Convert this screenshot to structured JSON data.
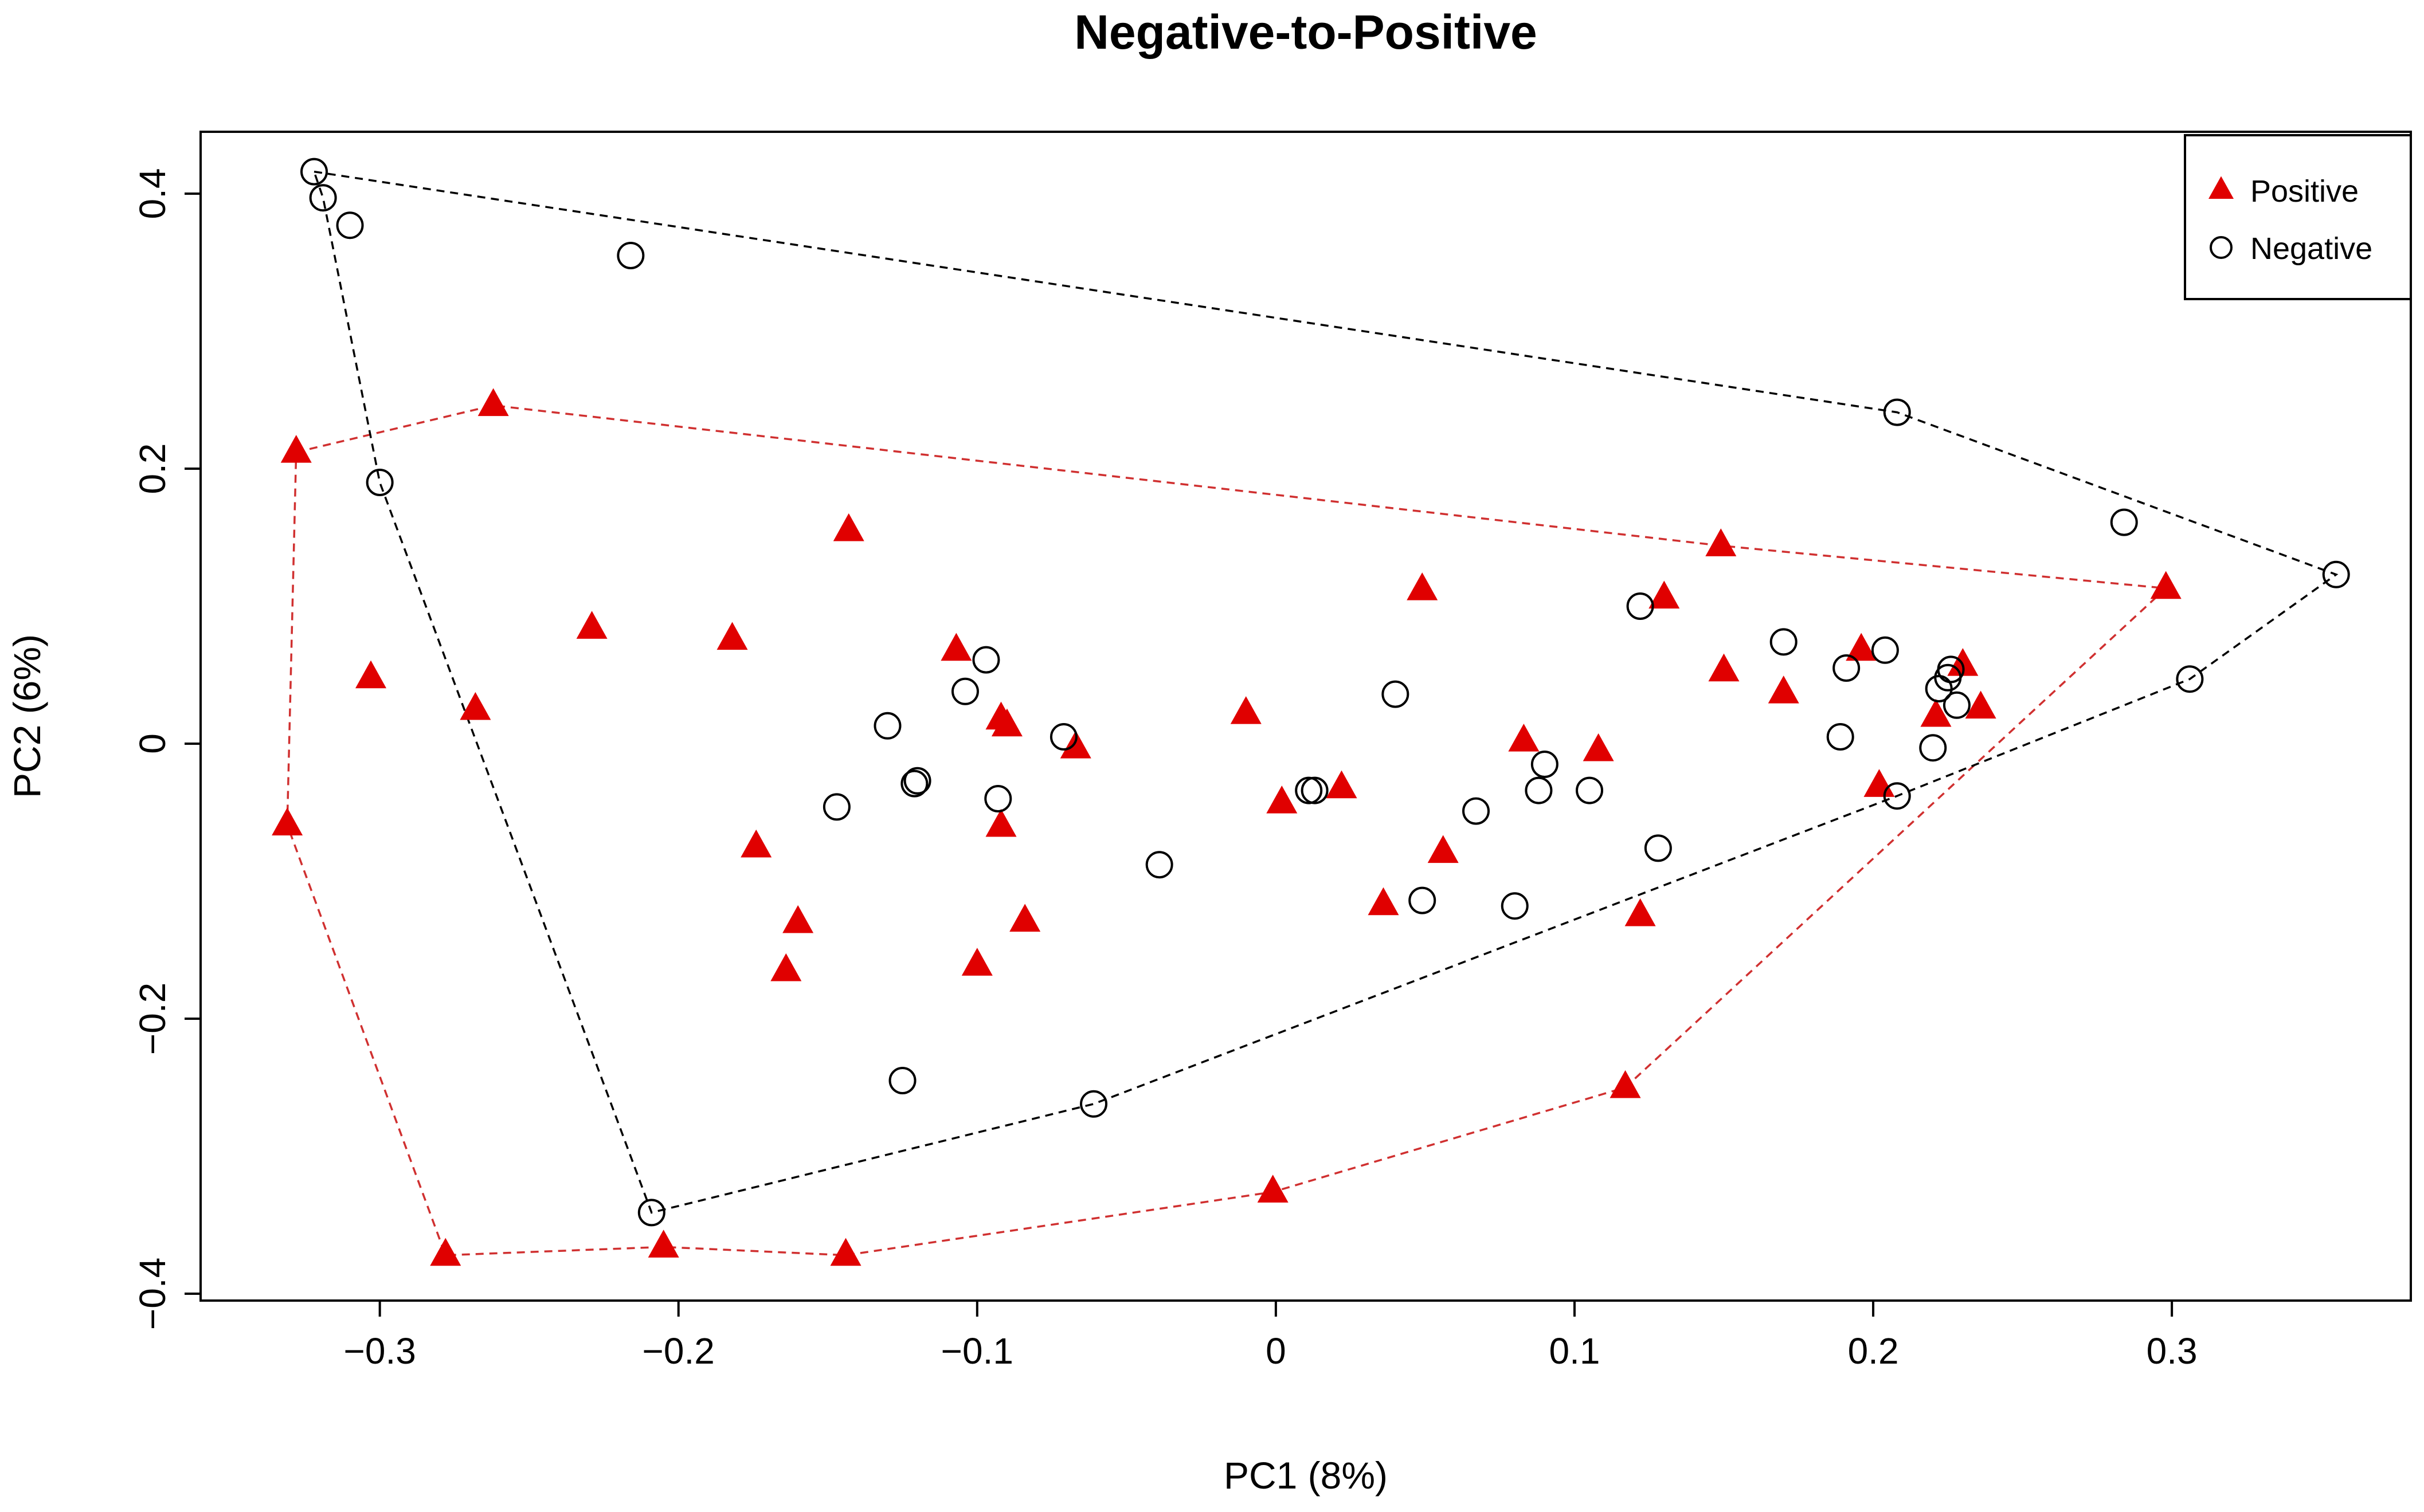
{
  "chart_data": {
    "type": "scatter",
    "title": "Negative-to-Positive",
    "xlabel": "PC1  (8%)",
    "ylabel": "PC2  (6%)",
    "xlim": [
      -0.36,
      0.38
    ],
    "ylim": [
      -0.405,
      0.445
    ],
    "x_ticks": [
      -0.3,
      -0.2,
      -0.1,
      0,
      0.1,
      0.2,
      0.3
    ],
    "x_tick_labels": [
      "−0.3",
      "−0.2",
      "−0.1",
      "0",
      "0.1",
      "0.2",
      "0.3"
    ],
    "y_ticks": [
      -0.4,
      -0.2,
      0,
      0.2,
      0.4
    ],
    "y_tick_labels": [
      "−0.4",
      "−0.2",
      "0",
      "0.2",
      "0.4"
    ],
    "legend_position": "top-right",
    "grid": false,
    "series": [
      {
        "name": "Positive",
        "marker": "filled-triangle",
        "color": "#e00000",
        "hull_color": "#d03030",
        "points": [
          [
            -0.331,
            -0.059
          ],
          [
            -0.328,
            0.212
          ],
          [
            -0.303,
            0.048
          ],
          [
            -0.278,
            -0.372
          ],
          [
            -0.268,
            0.025
          ],
          [
            -0.262,
            0.246
          ],
          [
            -0.229,
            0.084
          ],
          [
            -0.205,
            -0.366
          ],
          [
            -0.182,
            0.076
          ],
          [
            -0.174,
            -0.075
          ],
          [
            -0.164,
            -0.165
          ],
          [
            -0.16,
            -0.13
          ],
          [
            -0.144,
            -0.372
          ],
          [
            -0.143,
            0.155
          ],
          [
            -0.107,
            0.068
          ],
          [
            -0.1,
            -0.161
          ],
          [
            -0.092,
            0.018
          ],
          [
            -0.09,
            0.013
          ],
          [
            -0.092,
            -0.06
          ],
          [
            -0.084,
            -0.129
          ],
          [
            -0.067,
            -0.003
          ],
          [
            -0.01,
            0.022
          ],
          [
            -0.001,
            -0.326
          ],
          [
            0.002,
            -0.043
          ],
          [
            0.022,
            -0.032
          ],
          [
            0.036,
            -0.117
          ],
          [
            0.049,
            0.112
          ],
          [
            0.056,
            -0.079
          ],
          [
            0.083,
            0.002
          ],
          [
            0.108,
            -0.005
          ],
          [
            0.122,
            -0.125
          ],
          [
            0.117,
            -0.25
          ],
          [
            0.13,
            0.106
          ],
          [
            0.149,
            0.144
          ],
          [
            0.15,
            0.053
          ],
          [
            0.17,
            0.037
          ],
          [
            0.196,
            0.068
          ],
          [
            0.202,
            -0.031
          ],
          [
            0.221,
            0.02
          ],
          [
            0.23,
            0.057
          ],
          [
            0.236,
            0.026
          ],
          [
            0.298,
            0.113
          ]
        ],
        "hull": [
          [
            -0.328,
            0.212
          ],
          [
            -0.262,
            0.246
          ],
          [
            0.149,
            0.144
          ],
          [
            0.298,
            0.113
          ],
          [
            0.117,
            -0.25
          ],
          [
            -0.001,
            -0.326
          ],
          [
            -0.144,
            -0.372
          ],
          [
            -0.205,
            -0.366
          ],
          [
            -0.278,
            -0.372
          ],
          [
            -0.331,
            -0.059
          ],
          [
            -0.328,
            0.212
          ]
        ]
      },
      {
        "name": "Negative",
        "marker": "open-circle",
        "color": "#000000",
        "hull_color": "#000000",
        "points": [
          [
            -0.322,
            0.416
          ],
          [
            -0.319,
            0.397
          ],
          [
            -0.31,
            0.377
          ],
          [
            -0.3,
            0.19
          ],
          [
            -0.216,
            0.355
          ],
          [
            -0.209,
            -0.341
          ],
          [
            -0.147,
            -0.046
          ],
          [
            -0.13,
            0.013
          ],
          [
            -0.125,
            -0.245
          ],
          [
            -0.121,
            -0.029
          ],
          [
            -0.12,
            -0.027
          ],
          [
            -0.104,
            0.038
          ],
          [
            -0.097,
            0.061
          ],
          [
            -0.093,
            -0.04
          ],
          [
            -0.071,
            0.005
          ],
          [
            -0.061,
            -0.262
          ],
          [
            -0.039,
            -0.088
          ],
          [
            0.011,
            -0.034
          ],
          [
            0.013,
            -0.034
          ],
          [
            0.04,
            0.036
          ],
          [
            0.049,
            -0.114
          ],
          [
            0.067,
            -0.049
          ],
          [
            0.08,
            -0.118
          ],
          [
            0.088,
            -0.034
          ],
          [
            0.09,
            -0.015
          ],
          [
            0.105,
            -0.034
          ],
          [
            0.122,
            0.1
          ],
          [
            0.128,
            -0.076
          ],
          [
            0.17,
            0.074
          ],
          [
            0.189,
            0.005
          ],
          [
            0.191,
            0.055
          ],
          [
            0.204,
            0.068
          ],
          [
            0.208,
            0.241
          ],
          [
            0.208,
            -0.038
          ],
          [
            0.22,
            -0.003
          ],
          [
            0.222,
            0.04
          ],
          [
            0.225,
            0.048
          ],
          [
            0.226,
            0.054
          ],
          [
            0.228,
            0.028
          ],
          [
            0.284,
            0.161
          ],
          [
            0.306,
            0.047
          ],
          [
            0.355,
            0.123
          ]
        ],
        "hull": [
          [
            -0.322,
            0.416
          ],
          [
            0.208,
            0.241
          ],
          [
            0.355,
            0.123
          ],
          [
            0.306,
            0.047
          ],
          [
            0.208,
            -0.038
          ],
          [
            -0.061,
            -0.262
          ],
          [
            -0.209,
            -0.341
          ],
          [
            -0.3,
            0.19
          ],
          [
            -0.319,
            0.397
          ],
          [
            -0.322,
            0.416
          ]
        ]
      }
    ]
  }
}
